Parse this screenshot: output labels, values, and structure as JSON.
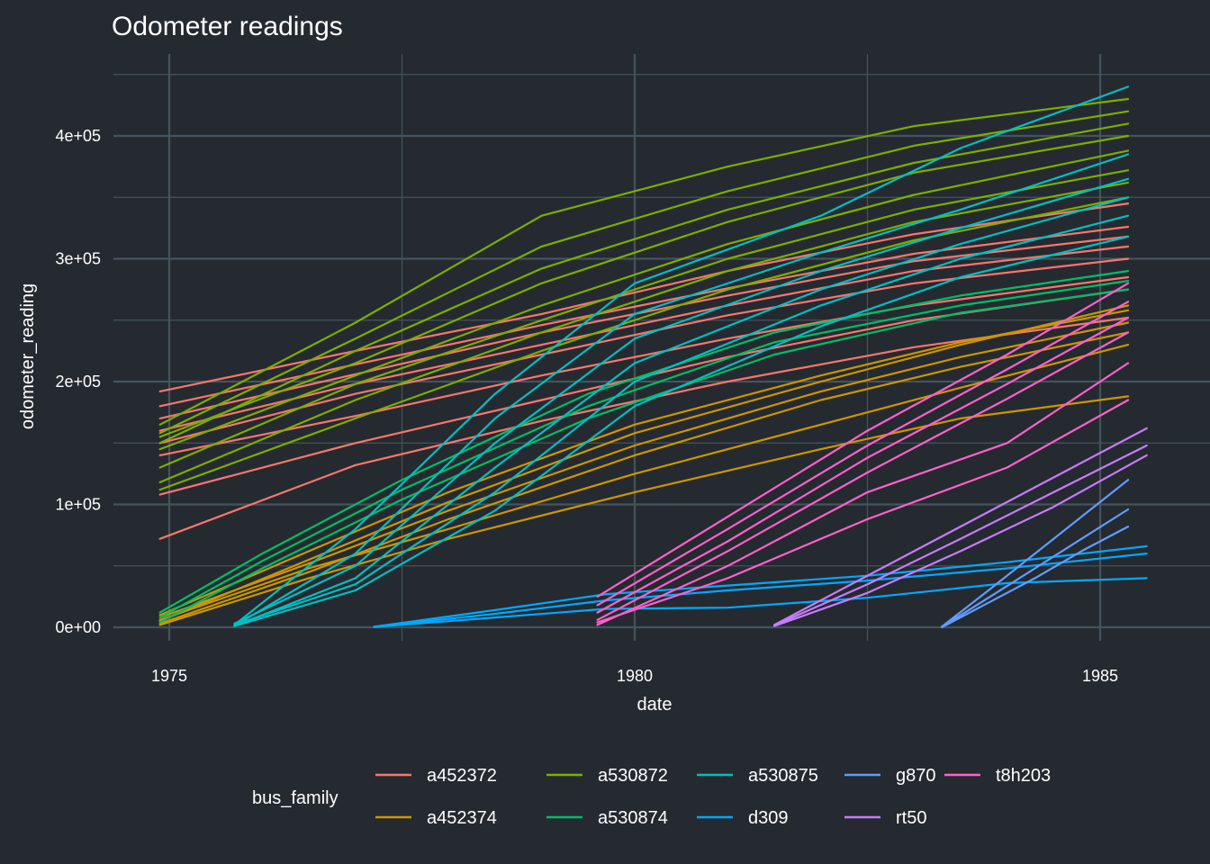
{
  "chart_data": {
    "type": "line",
    "title": "Odometer readings",
    "xlabel": "date",
    "ylabel": "odometer_reading",
    "xlim": [
      1974.4,
      1985.7
    ],
    "ylim": [
      -12000,
      452000
    ],
    "x_ticks": [
      1975,
      1980,
      1985
    ],
    "x_tick_labels": [
      "1975",
      "1980",
      "1985"
    ],
    "y_ticks": [
      0,
      100000,
      200000,
      300000,
      400000
    ],
    "y_tick_labels": [
      "0e+00",
      "1e+05",
      "2e+05",
      "3e+05",
      "4e+05"
    ],
    "grid": true,
    "legend_title": "bus_family",
    "legend_position": "bottom",
    "series": [
      {
        "name": "a452372",
        "color": "#F8766D",
        "x": [
          1974.9,
          1977,
          1979,
          1981,
          1983,
          1985.3
        ],
        "lines": [
          [
            192000,
            225000,
            255000,
            290000,
            320000,
            345000
          ],
          [
            180000,
            214000,
            246000,
            276000,
            304000,
            326000
          ],
          [
            170000,
            206000,
            240000,
            270000,
            298000,
            318000
          ],
          [
            160000,
            198000,
            230000,
            262000,
            290000,
            310000
          ],
          [
            150000,
            190000,
            222000,
            254000,
            280000,
            300000
          ],
          [
            140000,
            172000,
            205000,
            235000,
            262000,
            285000
          ],
          [
            108000,
            150000,
            185000,
            220000,
            250000,
            275000
          ],
          [
            72000,
            132000,
            168000,
            200000,
            228000,
            252000
          ]
        ]
      },
      {
        "name": "a452374",
        "color": "#CD9600",
        "x": [
          1974.9,
          1976.5,
          1978,
          1980,
          1982,
          1983.5,
          1985.3
        ],
        "lines": [
          [
            5000,
            55000,
            102000,
            158000,
            200000,
            230000,
            262000
          ],
          [
            10000,
            62000,
            110000,
            165000,
            205000,
            232000,
            258000
          ],
          [
            3000,
            45000,
            88000,
            140000,
            185000,
            212000,
            240000
          ],
          [
            8000,
            52000,
            95000,
            148000,
            192000,
            220000,
            248000
          ],
          [
            2000,
            40000,
            72000,
            110000,
            145000,
            170000,
            188000
          ],
          [
            6000,
            48000,
            80000,
            125000,
            165000,
            195000,
            230000
          ]
        ]
      },
      {
        "name": "a530872",
        "color": "#7CAE00",
        "x": [
          1974.9,
          1977,
          1979,
          1981,
          1983,
          1985.3
        ],
        "lines": [
          [
            165000,
            248000,
            335000,
            375000,
            408000,
            430000
          ],
          [
            158000,
            235000,
            310000,
            355000,
            392000,
            420000
          ],
          [
            150000,
            225000,
            292000,
            340000,
            378000,
            410000
          ],
          [
            155000,
            215000,
            280000,
            330000,
            370000,
            400000
          ],
          [
            145000,
            205000,
            262000,
            312000,
            352000,
            388000
          ],
          [
            130000,
            198000,
            250000,
            300000,
            340000,
            372000
          ],
          [
            118000,
            185000,
            240000,
            290000,
            330000,
            362000
          ],
          [
            112000,
            170000,
            225000,
            275000,
            315000,
            350000
          ]
        ]
      },
      {
        "name": "a530874",
        "color": "#00BE67",
        "x": [
          1974.9,
          1976,
          1977.5,
          1979.5,
          1981.5,
          1983.5,
          1985.3
        ],
        "lines": [
          [
            12000,
            60000,
            120000,
            190000,
            240000,
            270000,
            290000
          ],
          [
            8000,
            54000,
            112000,
            180000,
            232000,
            262000,
            282000
          ],
          [
            4000,
            48000,
            104000,
            170000,
            222000,
            256000,
            275000
          ]
        ]
      },
      {
        "name": "a530875",
        "color": "#00BFC4",
        "x": [
          1975.7,
          1977,
          1978.5,
          1980,
          1982,
          1983.5,
          1985.3
        ],
        "lines": [
          [
            2000,
            80000,
            190000,
            280000,
            335000,
            390000,
            440000
          ],
          [
            1000,
            60000,
            170000,
            255000,
            305000,
            340000,
            385000
          ],
          [
            3000,
            50000,
            150000,
            235000,
            290000,
            325000,
            365000
          ],
          [
            1000,
            40000,
            130000,
            215000,
            275000,
            312000,
            350000
          ],
          [
            2000,
            35000,
            110000,
            200000,
            262000,
            300000,
            335000
          ],
          [
            1000,
            30000,
            95000,
            180000,
            245000,
            285000,
            318000
          ]
        ]
      },
      {
        "name": "d309",
        "color": "#00A9FF",
        "x": [
          1977.2,
          1978.5,
          1979.7,
          1981,
          1982.5,
          1984,
          1985.5
        ],
        "lines": [
          [
            500,
            14000,
            27000,
            34000,
            42000,
            53000,
            66000
          ],
          [
            300,
            11000,
            22000,
            30000,
            38000,
            48000,
            60000
          ],
          [
            200,
            8000,
            15000,
            16000,
            24000,
            36000,
            40000
          ]
        ]
      },
      {
        "name": "g870",
        "color": "#619CFF",
        "x": [
          1983.3,
          1983.8,
          1984.3,
          1984.8,
          1985.3
        ],
        "lines": [
          [
            500,
            30000,
            60000,
            90000,
            120000
          ],
          [
            300,
            24000,
            48000,
            72000,
            96000
          ],
          [
            100,
            20000,
            40000,
            62000,
            82000
          ]
        ]
      },
      {
        "name": "rt50",
        "color": "#C77CFF",
        "x": [
          1981.5,
          1982.5,
          1983.5,
          1984.5,
          1985.5
        ],
        "lines": [
          [
            2000,
            42000,
            82000,
            122000,
            162000
          ],
          [
            1500,
            35000,
            72000,
            110000,
            148000
          ],
          [
            1000,
            28000,
            62000,
            98000,
            140000
          ]
        ]
      },
      {
        "name": "t8h203",
        "color": "#FF61CC",
        "x": [
          1979.6,
          1981,
          1982.5,
          1984,
          1985.3
        ],
        "lines": [
          [
            25000,
            90000,
            160000,
            222000,
            280000
          ],
          [
            18000,
            80000,
            148000,
            210000,
            265000
          ],
          [
            12000,
            70000,
            138000,
            198000,
            252000
          ],
          [
            6000,
            62000,
            126000,
            186000,
            240000
          ],
          [
            2000,
            50000,
            110000,
            150000,
            215000
          ],
          [
            4000,
            40000,
            88000,
            130000,
            185000
          ]
        ]
      }
    ]
  }
}
